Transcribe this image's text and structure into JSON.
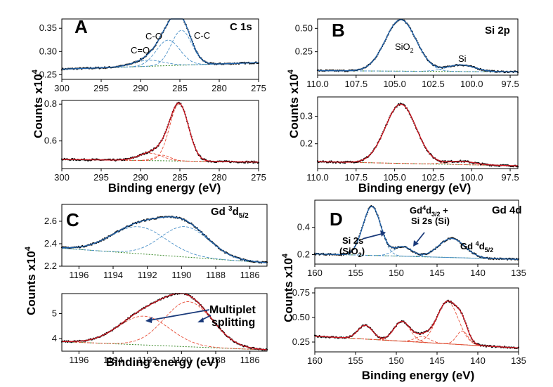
{
  "figure": {
    "panels": [
      {
        "letter": "A",
        "ylabel": "Counts x10",
        "ylabel_sup": "4",
        "xlabel": "Binding energy (eV)"
      },
      {
        "letter": "B",
        "ylabel": "Counts x10",
        "ylabel_sup": "4",
        "xlabel": "Binding energy (eV)"
      },
      {
        "letter": "C",
        "ylabel": "Counts x10",
        "ylabel_sup": "4",
        "xlabel": "Binding energy (eV)"
      },
      {
        "letter": "D",
        "ylabel": "Counts x10",
        "ylabel_sup": "4",
        "xlabel": "Binding energy (eV)"
      }
    ]
  },
  "colors": {
    "fit_top": "#1f5fa6",
    "component_top": "#4a90c8",
    "fit_bottom": "#c8141e",
    "component_bottom": "#e8503a",
    "background": "#3a8a2a",
    "data_points": "#111111",
    "arrow": "#1a3a7a"
  },
  "chart_data": [
    {
      "id": "A-top",
      "type": "line",
      "title": "C 1s",
      "xlim": [
        300,
        275
      ],
      "ylim": [
        0.24,
        0.37
      ],
      "xticks": [
        "300",
        "295",
        "290",
        "285",
        "280",
        "275"
      ],
      "yticks": [
        "0.25",
        "0.30",
        "0.35"
      ],
      "peaks": [
        {
          "center": 289.0,
          "height": 0.013,
          "width": 1.9
        },
        {
          "center": 286.5,
          "height": 0.055,
          "width": 1.5
        },
        {
          "center": 284.8,
          "height": 0.075,
          "width": 1.3
        }
      ],
      "baseline": {
        "left": 0.262,
        "right": 0.276
      },
      "annotations": [
        "C=O",
        "C-O",
        "C-C"
      ]
    },
    {
      "id": "A-bottom",
      "type": "line",
      "xlim": [
        300,
        275
      ],
      "ylim": [
        0.45,
        0.82
      ],
      "xticks": [
        "300",
        "295",
        "290",
        "285",
        "280",
        "275"
      ],
      "yticks": [
        "0.6",
        "0.8"
      ],
      "peaks": [
        {
          "center": 288.8,
          "height": 0.04,
          "width": 1.5
        },
        {
          "center": 287.2,
          "height": 0.03,
          "width": 1.0
        },
        {
          "center": 285.1,
          "height": 0.31,
          "width": 1.2
        }
      ],
      "baseline": {
        "left": 0.5,
        "right": 0.485
      }
    },
    {
      "id": "B-top",
      "type": "line",
      "title": "Si 2p",
      "xlim": [
        110,
        97
      ],
      "ylim": [
        0.0,
        0.6
      ],
      "xticks": [
        "110.0",
        "107.5",
        "105.0",
        "102.5",
        "100.0",
        "97.5"
      ],
      "yticks": [
        "0.25",
        "0.50"
      ],
      "peaks": [
        {
          "center": 104.6,
          "height": 0.55,
          "width": 1.0
        },
        {
          "center": 100.7,
          "height": 0.07,
          "width": 0.9
        }
      ],
      "baseline": {
        "left": 0.048,
        "right": 0.035
      },
      "annotations": [
        "SiO",
        "2",
        "Si"
      ]
    },
    {
      "id": "B-bottom",
      "type": "line",
      "xlim": [
        110,
        97
      ],
      "ylim": [
        0.11,
        0.37
      ],
      "xticks": [
        "110.0",
        "107.5",
        "105.0",
        "102.5",
        "100.0",
        "97.5"
      ],
      "yticks": [
        "0.2",
        "0.3"
      ],
      "peaks": [
        {
          "center": 104.6,
          "height": 0.215,
          "width": 1.0
        },
        {
          "center": 100.7,
          "height": 0.012,
          "width": 0.9
        }
      ],
      "baseline": {
        "left": 0.135,
        "right": 0.12
      }
    },
    {
      "id": "C-top",
      "type": "line",
      "title": "Gd ³d₅/₂",
      "xlim": [
        1197,
        1185
      ],
      "ylim": [
        2.2,
        2.75
      ],
      "xticks": [
        "1196",
        "1194",
        "1192",
        "1190",
        "1188",
        "1186"
      ],
      "yticks": [
        "2.2",
        "2.4",
        "2.6"
      ],
      "peaks": [
        {
          "center": 1192.5,
          "height": 0.24,
          "width": 1.6
        },
        {
          "center": 1189.8,
          "height": 0.27,
          "width": 1.4
        }
      ],
      "baseline": {
        "left": 2.36,
        "right": 2.23
      }
    },
    {
      "id": "C-bottom",
      "type": "line",
      "xlim": [
        1197,
        1185
      ],
      "ylim": [
        3.5,
        5.8
      ],
      "xticks": [
        "1196",
        "1194",
        "1192",
        "1190",
        "1188",
        "1186"
      ],
      "yticks": [
        "4",
        "5"
      ],
      "peaks": [
        {
          "center": 1192.2,
          "height": 1.15,
          "width": 1.5
        },
        {
          "center": 1189.6,
          "height": 1.8,
          "width": 1.4
        }
      ],
      "baseline": {
        "left": 3.88,
        "right": 3.55
      },
      "annotations": [
        "Multiplet",
        "splitting"
      ]
    },
    {
      "id": "D-top",
      "type": "line",
      "title": "Gd 4d",
      "xlim": [
        160,
        135
      ],
      "ylim": [
        0.13,
        0.6
      ],
      "xticks": [
        "160",
        "155",
        "150",
        "145",
        "140",
        "135"
      ],
      "yticks": [
        "0.2",
        "0.4"
      ],
      "peaks": [
        {
          "center": 153.0,
          "height": 0.36,
          "width": 1.1
        },
        {
          "center": 149.2,
          "height": 0.07,
          "width": 1.1
        },
        {
          "center": 143.2,
          "height": 0.14,
          "width": 1.6
        }
      ],
      "baseline": {
        "left": 0.205,
        "right": 0.165
      },
      "annotations": [
        "Si 2s",
        "(SiO",
        "2",
        ")",
        "Gd",
        "4",
        "d",
        "3/2",
        " +",
        "Si 2s (Si)",
        "Gd ",
        "4",
        "d",
        "5/2"
      ]
    },
    {
      "id": "D-bottom",
      "type": "line",
      "xlim": [
        160,
        135
      ],
      "ylim": [
        0.15,
        0.8
      ],
      "xticks": [
        "160",
        "155",
        "150",
        "145",
        "140",
        "135"
      ],
      "yticks": [
        "0.25",
        "0.50",
        "0.75"
      ],
      "peaks": [
        {
          "center": 153.8,
          "height": 0.14,
          "width": 0.9
        },
        {
          "center": 149.3,
          "height": 0.2,
          "width": 1.0
        },
        {
          "center": 146.8,
          "height": 0.06,
          "width": 0.9
        },
        {
          "center": 143.7,
          "height": 0.43,
          "width": 1.3
        },
        {
          "center": 141.9,
          "height": 0.14,
          "width": 0.7
        }
      ],
      "baseline": {
        "left": 0.31,
        "right": 0.19
      }
    }
  ]
}
